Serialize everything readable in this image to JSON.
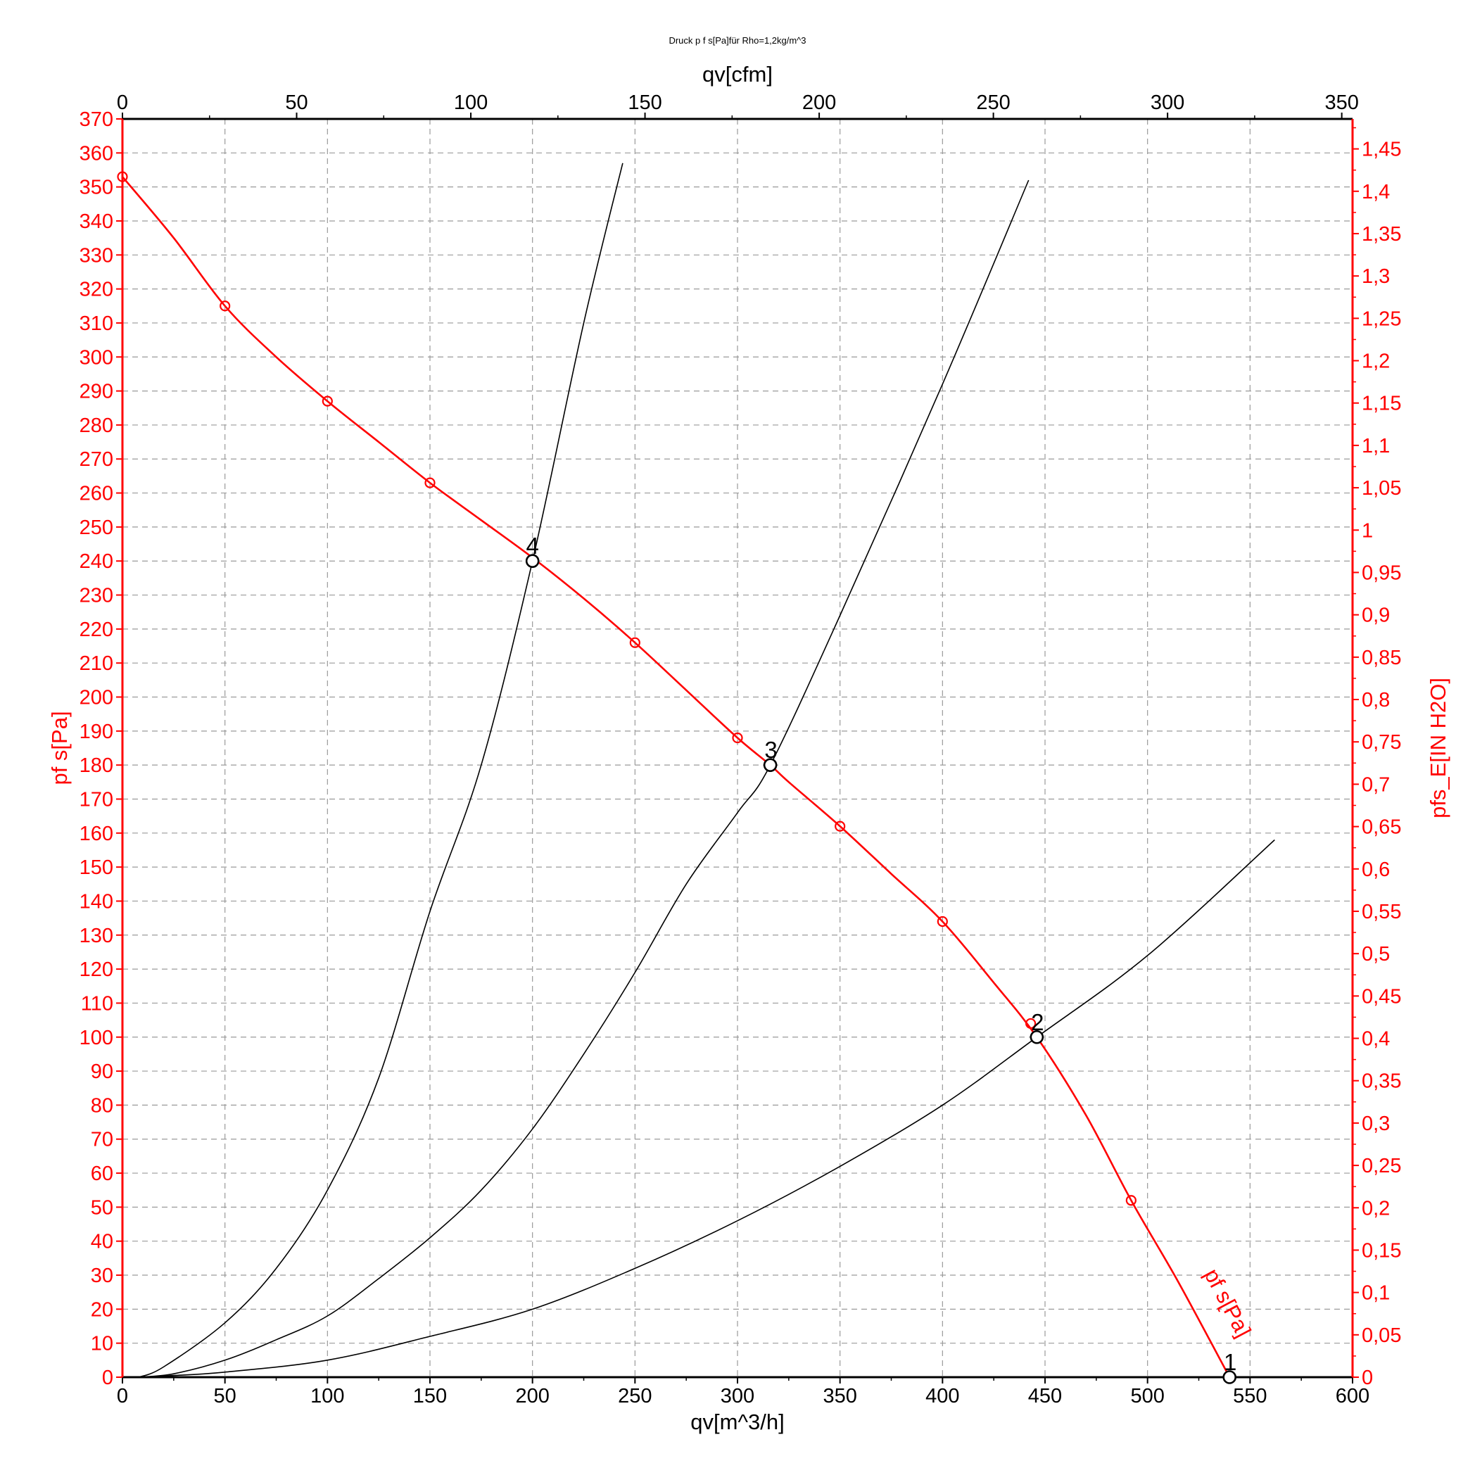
{
  "chart_data": {
    "type": "line",
    "title": "Druck p f s[Pa]für Rho=1,2kg/m^3",
    "xlabel": "qv[m^3/h]",
    "x2label": "qv[cfm]",
    "ylabel": "pf s[Pa]",
    "y2label": "pfs_E[IN H2O]",
    "xlim": [
      0,
      600
    ],
    "ylim": [
      0,
      370
    ],
    "x2lim": [
      0,
      353.1
    ],
    "y2lim": [
      0,
      1.4854
    ],
    "grid": true,
    "x_ticks": [
      "0",
      "50",
      "100",
      "150",
      "200",
      "250",
      "300",
      "350",
      "400",
      "450",
      "500",
      "550",
      "600"
    ],
    "x2_ticks": [
      "0",
      "50",
      "100",
      "150",
      "200",
      "250",
      "300",
      "350"
    ],
    "y_ticks": [
      "0",
      "10",
      "20",
      "30",
      "40",
      "50",
      "60",
      "70",
      "80",
      "90",
      "100",
      "110",
      "120",
      "130",
      "140",
      "150",
      "160",
      "170",
      "180",
      "190",
      "200",
      "210",
      "220",
      "230",
      "240",
      "250",
      "260",
      "270",
      "280",
      "290",
      "300",
      "310",
      "320",
      "330",
      "340",
      "350",
      "360",
      "370"
    ],
    "y2_ticks": [
      "0",
      "0,05",
      "0,1",
      "0,15",
      "0,2",
      "0,25",
      "0,3",
      "0,35",
      "0,4",
      "0,45",
      "0,5",
      "0,55",
      "0,6",
      "0,65",
      "0,7",
      "0,75",
      "0,8",
      "0,85",
      "0,9",
      "0,95",
      "1",
      "1,05",
      "1,1",
      "1,15",
      "1,2",
      "1,25",
      "1,3",
      "1,35",
      "1,4",
      "1,45"
    ],
    "series": [
      {
        "name": "pf s[Pa]",
        "color": "#ff0000",
        "x": [
          0,
          25,
          50,
          75,
          100,
          125,
          150,
          175,
          200,
          225,
          250,
          275,
          300,
          316,
          325,
          350,
          375,
          400,
          425,
          446,
          470,
          492,
          515,
          540
        ],
        "y": [
          353,
          335,
          315,
          300,
          287,
          275,
          263,
          252,
          241,
          229,
          216,
          202,
          188,
          180,
          175,
          162,
          148,
          134,
          116,
          100,
          77,
          52,
          28,
          0
        ],
        "markers_x": [
          0,
          50,
          100,
          150,
          250,
          300,
          350,
          400,
          443,
          492
        ],
        "markers_y": [
          353,
          315,
          287,
          263,
          216,
          188,
          162,
          134,
          104,
          52
        ]
      },
      {
        "color": "#000000",
        "x": [
          8,
          20,
          50,
          75,
          100,
          125,
          150,
          175,
          200,
          225,
          244
        ],
        "y": [
          0,
          3,
          16,
          32,
          55,
          88,
          137,
          180,
          240,
          310,
          357
        ]
      },
      {
        "color": "#000000",
        "x": [
          8,
          25,
          50,
          75,
          100,
          125,
          150,
          175,
          200,
          225,
          250,
          275,
          300,
          316,
          350,
          400,
          442
        ],
        "y": [
          0,
          1,
          5,
          11,
          18,
          29,
          41,
          55,
          73,
          95,
          119,
          145,
          166,
          180,
          224,
          292,
          352
        ]
      },
      {
        "color": "#000000",
        "x": [
          8,
          25,
          50,
          100,
          150,
          200,
          250,
          300,
          350,
          400,
          446,
          500,
          562
        ],
        "y": [
          0,
          0.5,
          1.5,
          5,
          12,
          20,
          32,
          46,
          62,
          80,
          100,
          124,
          158
        ]
      }
    ],
    "operating_points": [
      {
        "label": "1",
        "x": 540,
        "y": 0
      },
      {
        "label": "2",
        "x": 446,
        "y": 100
      },
      {
        "label": "3",
        "x": 316,
        "y": 180
      },
      {
        "label": "4",
        "x": 200,
        "y": 240
      }
    ],
    "curve_label": "pf s[Pa]"
  }
}
